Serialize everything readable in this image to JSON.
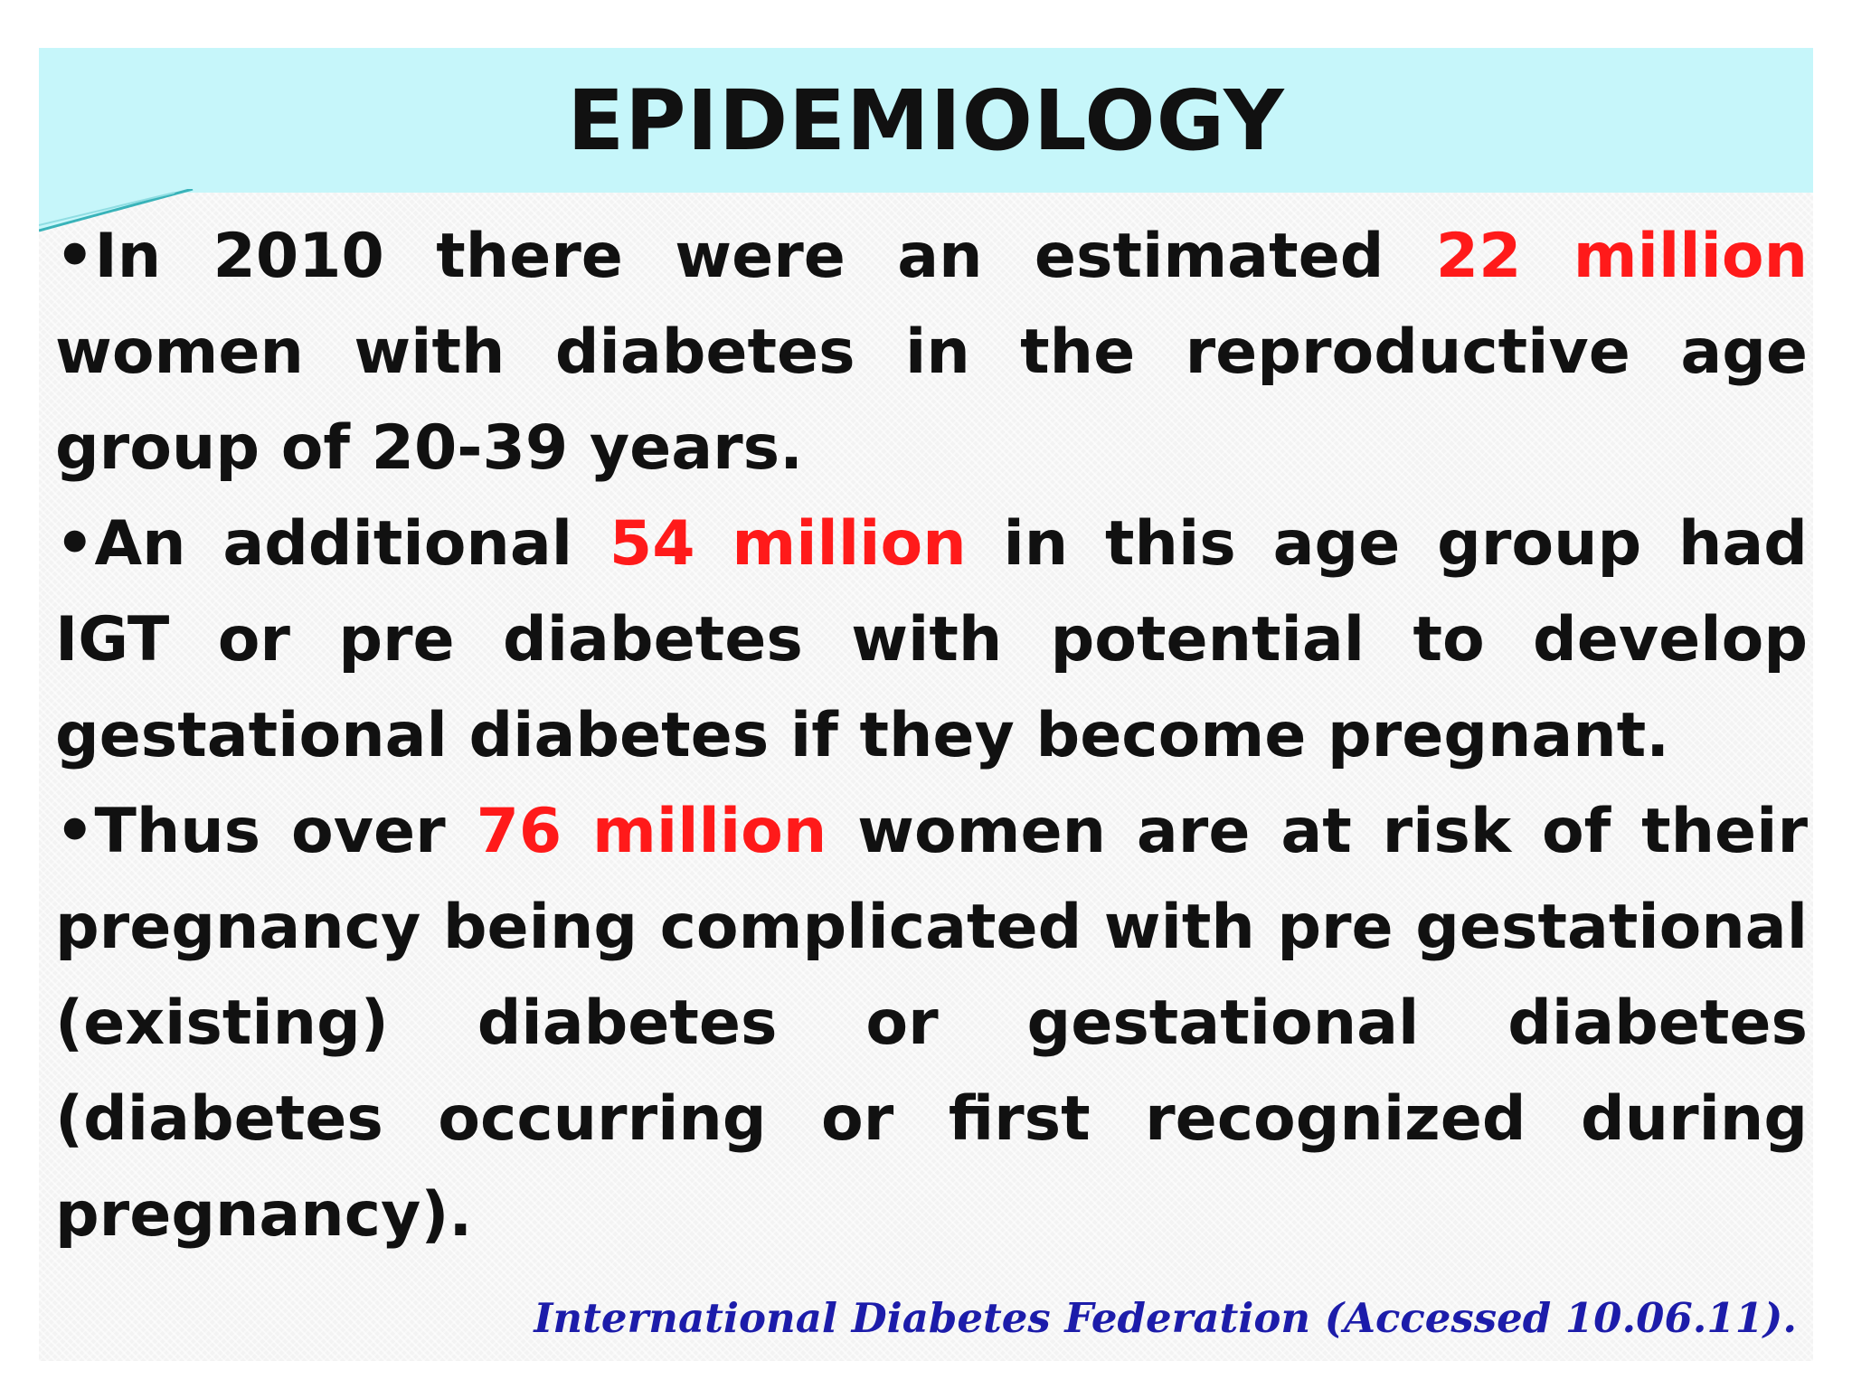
{
  "slide": {
    "title": "EPIDEMIOLOGY",
    "colors": {
      "title_band": "#c6f6fa",
      "body_text": "#111111",
      "highlight": "#ff1a1a",
      "source_text": "#1c1caa"
    },
    "bullets": [
      {
        "pre": "•In 2010 there were an estimated ",
        "highlight": "22 million",
        "post": " women with diabetes in the reproductive age group of 20-39 years."
      },
      {
        "pre": "•An additional ",
        "highlight": "54 million",
        "post": " in this age group had IGT or pre diabetes with potential to develop gestational diabetes if they become pregnant."
      },
      {
        "pre": "•Thus over ",
        "highlight": "76 million",
        "post": " women are at risk of their pregnancy being complicated with pre gestational (existing) diabetes or gestational diabetes (diabetes occurring or first recognized during pregnancy)."
      }
    ],
    "source": "International Diabetes Federation (Accessed 10.06.11)."
  }
}
